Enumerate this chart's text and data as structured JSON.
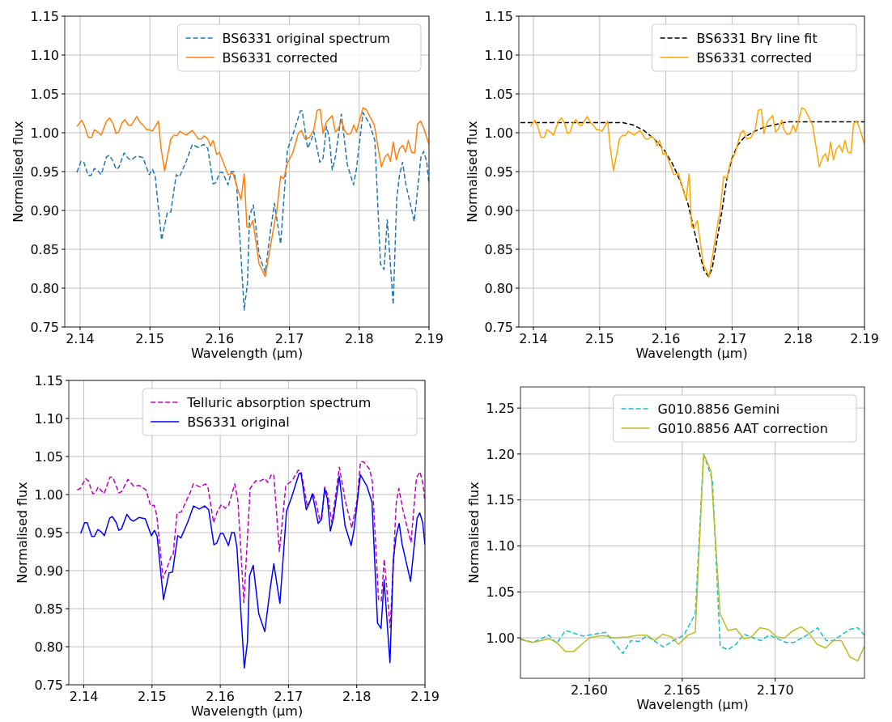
{
  "chart_data": [
    {
      "type": "line",
      "xlabel": "Wavelength (μm)",
      "ylabel": "Normalised flux",
      "xlim": [
        2.1378,
        2.19
      ],
      "ylim": [
        0.75,
        1.15
      ],
      "xticks": [
        2.14,
        2.15,
        2.16,
        2.17,
        2.18,
        2.19
      ],
      "yticks": [
        0.75,
        {
          "value": 0.8,
          "label": "0.80"
        },
        0.85,
        {
          "value": 0.9,
          "label": "0.90"
        },
        0.95,
        {
          "value": 1,
          "label": "1.00"
        },
        1.05,
        {
          "value": 1.1,
          "label": "1.10"
        },
        1.15
      ],
      "grid": true,
      "legend": "top right",
      "series": [
        {
          "name": "BS6331 original spectrum",
          "color": "#1f77b4",
          "line_style": "dashed",
          "x": [
            2.13954,
            2.14012,
            2.1405,
            2.14116,
            2.14155,
            2.14205,
            2.14255,
            2.14302,
            2.14379,
            2.14418,
            2.14476,
            2.14514,
            2.14553,
            2.14631,
            2.14688,
            2.14727,
            2.14812,
            2.14901,
            2.1499,
            2.15037,
            2.15075,
            2.15168,
            2.15249,
            2.153,
            2.15377,
            2.15423,
            2.1552,
            2.15609,
            2.15694,
            2.15772,
            2.1583,
            2.15907,
            2.15946,
            2.16004,
            2.16042,
            2.1612,
            2.16166,
            2.16205,
            2.16244,
            2.16352,
            2.16398,
            2.16429,
            2.16483,
            2.16565,
            2.16653,
            2.16731,
            2.16785,
            2.16874,
            2.16971,
            2.17048,
            2.17156,
            2.17183,
            2.17261,
            2.17311,
            2.1735,
            2.17435,
            2.17481,
            2.17531,
            2.1757,
            2.17613,
            2.17659,
            2.17744,
            2.17829,
            2.17918,
            2.17961,
            2.18054,
            2.1815,
            2.18224,
            2.18305,
            2.18356,
            2.18402,
            2.18487,
            2.18537,
            2.18576,
            2.18622,
            2.18665,
            2.18789,
            2.18885,
            2.18924,
            2.18967,
            2.19
          ],
          "values": [
            0.949,
            0.963,
            0.963,
            0.945,
            0.945,
            0.954,
            0.951,
            0.946,
            0.969,
            0.971,
            0.963,
            0.953,
            0.955,
            0.974,
            0.967,
            0.965,
            0.97,
            0.968,
            0.946,
            0.953,
            0.945,
            0.862,
            0.897,
            0.898,
            0.946,
            0.943,
            0.963,
            0.985,
            0.981,
            0.985,
            0.98,
            0.934,
            0.936,
            0.949,
            0.949,
            0.933,
            0.95,
            0.95,
            0.931,
            0.772,
            0.806,
            0.893,
            0.907,
            0.843,
            0.82,
            0.876,
            0.909,
            0.857,
            0.978,
            0.997,
            1.028,
            1.028,
            0.98,
            0.99,
            1.001,
            0.962,
            0.967,
            1.008,
            0.994,
            0.952,
            0.969,
            1.024,
            0.959,
            0.933,
            0.954,
            1.026,
            1.011,
            0.99,
            0.831,
            0.824,
            0.888,
            0.779,
            0.914,
            0.945,
            0.962,
            0.935,
            0.886,
            0.969,
            0.976,
            0.963,
            0.934
          ]
        },
        {
          "name": "BS6331 corrected",
          "color": "#ff7f0e",
          "line_style": "solid",
          "x": [
            2.13954,
            2.14023,
            2.14062,
            2.14116,
            2.14166,
            2.14205,
            2.14255,
            2.14302,
            2.14379,
            2.14425,
            2.14476,
            2.14514,
            2.14553,
            2.14603,
            2.14642,
            2.14688,
            2.14727,
            2.14812,
            2.14862,
            2.14901,
            2.14952,
            2.1499,
            2.15037,
            2.15122,
            2.1516,
            2.15211,
            2.153,
            2.15346,
            2.15385,
            2.15431,
            2.1552,
            2.15609,
            2.15694,
            2.15741,
            2.15779,
            2.1583,
            2.15868,
            2.15907,
            2.15957,
            2.15996,
            2.1612,
            2.16189,
            2.16305,
            2.16352,
            2.1639,
            2.16429,
            2.16476,
            2.16565,
            2.16653,
            2.16708,
            2.16785,
            2.16816,
            2.16874,
            2.1692,
            2.16971,
            2.17048,
            2.17125,
            2.17172,
            2.17222,
            2.17288,
            2.1735,
            2.17396,
            2.17443,
            2.17481,
            2.17531,
            2.17613,
            2.17659,
            2.17698,
            2.17752,
            2.17783,
            2.17829,
            2.1788,
            2.17922,
            2.17961,
            2.18054,
            2.181,
            2.18216,
            2.18317,
            2.18371,
            2.1841,
            2.18448,
            2.18487,
            2.18533,
            2.18576,
            2.18622,
            2.18665,
            2.18704,
            2.1875,
            2.18796,
            2.18835,
            2.18881,
            2.18924,
            2.19
          ],
          "values": [
            1.008,
            1.016,
            1.009,
            0.994,
            0.994,
            1.004,
            1.001,
            0.997,
            1.015,
            1.019,
            1.011,
            0.999,
            1.001,
            1.013,
            1.017,
            1.01,
            1.009,
            1.021,
            1.013,
            1.01,
            1.004,
            1.004,
            1.002,
            1.015,
            0.98,
            0.951,
            0.992,
            0.997,
            0.996,
            1.002,
            0.997,
            1.003,
            0.992,
            0.992,
            0.996,
            0.992,
            0.983,
            0.99,
            0.972,
            0.975,
            0.946,
            0.948,
            0.914,
            0.947,
            0.879,
            0.878,
            0.887,
            0.831,
            0.815,
            0.843,
            0.884,
            0.897,
            0.944,
            0.941,
            0.961,
            0.974,
            0.999,
            1.003,
            0.992,
            0.994,
            1.004,
            1.029,
            1.03,
            0.999,
            1.014,
            1.022,
            1.001,
            1.005,
            1.016,
            1.004,
            0.998,
            0.999,
            1.01,
            1.001,
            1.032,
            1.03,
            1.01,
            0.956,
            0.969,
            0.973,
            0.963,
            0.988,
            0.965,
            0.979,
            0.984,
            0.975,
            0.99,
            0.975,
            0.974,
            1.011,
            1.015,
            1.006,
            0.985
          ]
        }
      ]
    },
    {
      "type": "line",
      "xlabel": "Wavelength (μm)",
      "ylabel": "Normalised flux",
      "xlim": [
        2.1378,
        2.19
      ],
      "ylim": [
        0.75,
        1.15
      ],
      "xticks": [
        2.14,
        2.15,
        2.16,
        2.17,
        2.18,
        2.19
      ],
      "yticks": [
        0.75,
        {
          "value": 0.8,
          "label": "0.80"
        },
        0.85,
        {
          "value": 0.9,
          "label": "0.90"
        },
        0.95,
        {
          "value": 1,
          "label": "1.00"
        },
        1.05,
        {
          "value": 1.1,
          "label": "1.10"
        },
        1.15
      ],
      "grid": true,
      "legend": "top right",
      "series": [
        {
          "name": "BS6331 Brγ line fit",
          "color": "#000000",
          "line_style": "dashed",
          "x": [
            2.13803,
            2.15351,
            2.15509,
            2.15667,
            2.15824,
            2.15982,
            2.161,
            2.16218,
            2.16336,
            2.16435,
            2.16514,
            2.16581,
            2.16644,
            2.16699,
            2.1677,
            2.16849,
            2.1692,
            2.16998,
            2.17085,
            2.17184,
            2.17322,
            2.17479,
            2.17676,
            2.17834,
            2.19
          ],
          "values": [
            1.013,
            1.013,
            1.01,
            1.003,
            0.992,
            0.977,
            0.96,
            0.938,
            0.908,
            0.872,
            0.843,
            0.822,
            0.815,
            0.825,
            0.861,
            0.9,
            0.94,
            0.967,
            0.984,
            0.994,
            1.001,
            1.007,
            1.011,
            1.014,
            1.014
          ]
        },
        {
          "name": "BS6331 corrected",
          "color": "#ffa500",
          "line_style": "solid",
          "x": [
            2.13954,
            2.14023,
            2.14062,
            2.14116,
            2.14166,
            2.14205,
            2.14255,
            2.14302,
            2.14379,
            2.14425,
            2.14476,
            2.14514,
            2.14553,
            2.14603,
            2.14642,
            2.14688,
            2.14727,
            2.14812,
            2.14862,
            2.14901,
            2.14952,
            2.1499,
            2.15037,
            2.15122,
            2.1516,
            2.15211,
            2.153,
            2.15346,
            2.15385,
            2.15431,
            2.1552,
            2.15609,
            2.15694,
            2.15741,
            2.15779,
            2.1583,
            2.15868,
            2.15907,
            2.15957,
            2.15996,
            2.1612,
            2.16189,
            2.16305,
            2.16352,
            2.1639,
            2.16429,
            2.16476,
            2.16565,
            2.16653,
            2.16708,
            2.16785,
            2.16816,
            2.16874,
            2.1692,
            2.16971,
            2.17048,
            2.17125,
            2.17172,
            2.17222,
            2.17288,
            2.1735,
            2.17396,
            2.17443,
            2.17481,
            2.17531,
            2.17613,
            2.17659,
            2.17698,
            2.17752,
            2.17783,
            2.17829,
            2.1788,
            2.17922,
            2.17961,
            2.18054,
            2.181,
            2.18216,
            2.18317,
            2.18371,
            2.1841,
            2.18448,
            2.18487,
            2.18533,
            2.18576,
            2.18622,
            2.18665,
            2.18704,
            2.1875,
            2.18796,
            2.18835,
            2.18881,
            2.18924,
            2.19
          ],
          "values": [
            1.008,
            1.016,
            1.009,
            0.994,
            0.994,
            1.004,
            1.001,
            0.997,
            1.015,
            1.019,
            1.011,
            0.999,
            1.001,
            1.013,
            1.017,
            1.01,
            1.009,
            1.021,
            1.013,
            1.01,
            1.004,
            1.004,
            1.002,
            1.015,
            0.98,
            0.951,
            0.992,
            0.997,
            0.996,
            1.002,
            0.997,
            1.003,
            0.992,
            0.992,
            0.996,
            0.992,
            0.983,
            0.99,
            0.972,
            0.975,
            0.946,
            0.948,
            0.914,
            0.947,
            0.879,
            0.878,
            0.887,
            0.831,
            0.815,
            0.843,
            0.884,
            0.897,
            0.944,
            0.941,
            0.961,
            0.974,
            0.999,
            1.003,
            0.992,
            0.994,
            1.004,
            1.029,
            1.03,
            0.999,
            1.014,
            1.022,
            1.001,
            1.005,
            1.016,
            1.004,
            0.998,
            0.999,
            1.01,
            1.001,
            1.032,
            1.03,
            1.01,
            0.956,
            0.969,
            0.973,
            0.963,
            0.988,
            0.965,
            0.979,
            0.984,
            0.975,
            0.99,
            0.975,
            0.974,
            1.011,
            1.015,
            1.006,
            0.985
          ]
        }
      ]
    },
    {
      "type": "line",
      "xlabel": "Wavelength (μm)",
      "ylabel": "Normalised flux",
      "xlim": [
        2.1378,
        2.19
      ],
      "ylim": [
        0.75,
        1.15
      ],
      "xticks": [
        2.14,
        2.15,
        2.16,
        2.17,
        2.18,
        2.19
      ],
      "yticks": [
        0.75,
        {
          "value": 0.8,
          "label": "0.80"
        },
        0.85,
        {
          "value": 0.9,
          "label": "0.90"
        },
        0.95,
        {
          "value": 1,
          "label": "1.00"
        },
        1.05,
        {
          "value": 1.1,
          "label": "1.10"
        },
        1.15
      ],
      "grid": true,
      "legend": "top right",
      "series": [
        {
          "name": "Telluric absorption spectrum",
          "color": "#bf00bf",
          "line_style": "dashed",
          "x": [
            2.13901,
            2.13948,
            2.14028,
            2.14067,
            2.14131,
            2.1417,
            2.1421,
            2.14258,
            2.14297,
            2.14384,
            2.14424,
            2.14515,
            2.14555,
            2.14646,
            2.14733,
            2.14813,
            2.14912,
            2.14979,
            2.15031,
            2.1507,
            2.15161,
            2.15209,
            2.1528,
            2.15308,
            2.15367,
            2.15427,
            2.15566,
            2.15605,
            2.15704,
            2.15784,
            2.15823,
            2.15902,
            2.15962,
            2.16021,
            2.16073,
            2.1612,
            2.16212,
            2.16259,
            2.16346,
            2.16438,
            2.16517,
            2.16564,
            2.16656,
            2.16695,
            2.16755,
            2.16786,
            2.16866,
            2.16961,
            2.17052,
            2.17143,
            2.17183,
            2.17278,
            2.17357,
            2.17397,
            2.1746,
            2.17488,
            2.17532,
            2.17579,
            2.17635,
            2.17746,
            2.17825,
            2.17928,
            2.18007,
            2.18055,
            2.18102,
            2.1819,
            2.18229,
            2.1832,
            2.1836,
            2.18403,
            2.18491,
            2.18578,
            2.18617,
            2.18681,
            2.18796,
            2.18875,
            2.18927,
            2.18974,
            2.19
          ],
          "values": [
            1.006,
            1.008,
            1.021,
            1.018,
            1.001,
            1.002,
            1.01,
            1.005,
            1.001,
            1.023,
            1.023,
            1.002,
            1.004,
            1.02,
            1.011,
            1.012,
            1.006,
            0.985,
            0.986,
            0.972,
            0.89,
            0.901,
            0.919,
            0.92,
            0.976,
            0.977,
            1.004,
            1.014,
            1.01,
            1.014,
            1.008,
            0.963,
            0.979,
            0.987,
            0.982,
            0.985,
            1.014,
            0.992,
            0.858,
            1.008,
            1.018,
            1.017,
            1.021,
            1.016,
            1.027,
            1.025,
            0.925,
            1.012,
            1.018,
            1.032,
            1.031,
            0.984,
            1.002,
            0.992,
            0.966,
            0.969,
            1.01,
            0.998,
            0.963,
            1.036,
            0.995,
            0.956,
            0.994,
            1.043,
            1.043,
            1.033,
            1.017,
            0.862,
            0.86,
            0.915,
            0.825,
            0.988,
            1.008,
            0.978,
            0.937,
            1.022,
            1.03,
            1.013,
            0.99
          ]
        },
        {
          "name": "BS6331 original",
          "color": "#0000ff",
          "line_style": "solid",
          "x": [
            2.13954,
            2.14012,
            2.1405,
            2.14116,
            2.14155,
            2.14205,
            2.14255,
            2.14302,
            2.14379,
            2.14418,
            2.14476,
            2.14514,
            2.14553,
            2.14631,
            2.14688,
            2.14727,
            2.14812,
            2.14901,
            2.1499,
            2.15037,
            2.15075,
            2.15168,
            2.15249,
            2.153,
            2.15377,
            2.15423,
            2.1552,
            2.15609,
            2.15694,
            2.15772,
            2.1583,
            2.15907,
            2.15946,
            2.16004,
            2.16042,
            2.1612,
            2.16166,
            2.16205,
            2.16244,
            2.16352,
            2.16398,
            2.16429,
            2.16483,
            2.16565,
            2.16653,
            2.16731,
            2.16785,
            2.16874,
            2.16971,
            2.17048,
            2.17156,
            2.17183,
            2.17261,
            2.17311,
            2.1735,
            2.17435,
            2.17481,
            2.17531,
            2.1757,
            2.17613,
            2.17659,
            2.17744,
            2.17829,
            2.17918,
            2.17961,
            2.18054,
            2.1815,
            2.18224,
            2.18305,
            2.18356,
            2.18402,
            2.18487,
            2.18537,
            2.18576,
            2.18622,
            2.18665,
            2.18789,
            2.18885,
            2.18924,
            2.18967,
            2.19
          ],
          "values": [
            0.949,
            0.963,
            0.963,
            0.945,
            0.945,
            0.954,
            0.951,
            0.946,
            0.969,
            0.971,
            0.963,
            0.953,
            0.955,
            0.974,
            0.967,
            0.965,
            0.97,
            0.968,
            0.946,
            0.953,
            0.945,
            0.862,
            0.897,
            0.898,
            0.946,
            0.943,
            0.963,
            0.985,
            0.981,
            0.985,
            0.98,
            0.934,
            0.936,
            0.949,
            0.949,
            0.933,
            0.95,
            0.95,
            0.931,
            0.772,
            0.806,
            0.893,
            0.907,
            0.843,
            0.82,
            0.876,
            0.909,
            0.857,
            0.978,
            0.997,
            1.028,
            1.028,
            0.98,
            0.99,
            1.001,
            0.962,
            0.967,
            1.008,
            0.994,
            0.952,
            0.969,
            1.024,
            0.959,
            0.933,
            0.954,
            1.026,
            1.011,
            0.99,
            0.831,
            0.824,
            0.888,
            0.779,
            0.914,
            0.945,
            0.962,
            0.935,
            0.886,
            0.969,
            0.976,
            0.963,
            0.934
          ]
        }
      ]
    },
    {
      "type": "line",
      "xlabel": "Wavelength (μm)",
      "ylabel": "Normalised flux",
      "xlim": [
        2.1563,
        2.1748
      ],
      "ylim": [
        0.956,
        1.273
      ],
      "xticks": [
        {
          "value": 2.16,
          "label": "2.160"
        },
        {
          "value": 2.165,
          "label": "2.165"
        },
        {
          "value": 2.17,
          "label": "2.170"
        }
      ],
      "yticks": [
        {
          "value": 1,
          "label": "1.00"
        },
        1.05,
        {
          "value": 1.1,
          "label": "1.10"
        },
        1.15,
        {
          "value": 1.2,
          "label": "1.20"
        },
        1.25
      ],
      "grid": true,
      "legend": "top right",
      "series": [
        {
          "name": "G010.8856 Gemini",
          "color": "#17becf",
          "line_style": "dashed",
          "x": [
            2.1563,
            2.15697,
            2.15782,
            2.15825,
            2.15872,
            2.15967,
            2.16088,
            2.16181,
            2.16224,
            2.16266,
            2.16309,
            2.16399,
            2.16444,
            2.16509,
            2.1657,
            2.16615,
            2.16662,
            2.16704,
            2.16746,
            2.16789,
            2.16832,
            2.16922,
            2.16969,
            2.17057,
            2.171,
            2.17171,
            2.17228,
            2.17274,
            2.17313,
            2.17399,
            2.17444,
            2.1748
          ],
          "values": [
            0.999,
            0.995,
            1.003,
            0.994,
            1.008,
            1.002,
            1.006,
            0.983,
            0.997,
            0.996,
            1.002,
            0.99,
            0.996,
            1.003,
            1.026,
            1.2,
            1.172,
            0.991,
            0.987,
            0.993,
            1.004,
            0.997,
            1.003,
            0.995,
            0.995,
            1.003,
            1.011,
            0.997,
            0.997,
            1.009,
            1.011,
            1.003
          ]
        },
        {
          "name": "G010.8856 AAT correction",
          "color": "#bcbd22",
          "line_style": "solid",
          "x": [
            2.1563,
            2.15697,
            2.15782,
            2.15825,
            2.15872,
            2.15915,
            2.16,
            2.16053,
            2.16088,
            2.16131,
            2.16209,
            2.16266,
            2.16309,
            2.16352,
            2.16395,
            2.16442,
            2.1648,
            2.1653,
            2.1657,
            2.16615,
            2.16655,
            2.16704,
            2.16746,
            2.16789,
            2.16832,
            2.16872,
            2.16917,
            2.16964,
            2.17007,
            2.1705,
            2.17097,
            2.1714,
            2.17182,
            2.17225,
            2.17271,
            2.17313,
            2.17356,
            2.17402,
            2.17444,
            2.1748
          ],
          "values": [
            0.998,
            0.995,
            0.999,
            0.995,
            0.985,
            0.985,
            1.0,
            1.002,
            1.002,
            1.0,
            1.001,
            1.003,
            1.003,
            0.997,
            1.004,
            1.001,
            0.993,
            1.003,
            1.006,
            1.2,
            1.181,
            1.026,
            1.008,
            1.01,
            0.999,
            1.001,
            1.011,
            1.009,
            1.001,
            1.0,
            1.008,
            1.012,
            1.005,
            0.993,
            0.989,
            0.997,
            0.997,
            0.979,
            0.975,
            0.991
          ]
        }
      ]
    }
  ]
}
